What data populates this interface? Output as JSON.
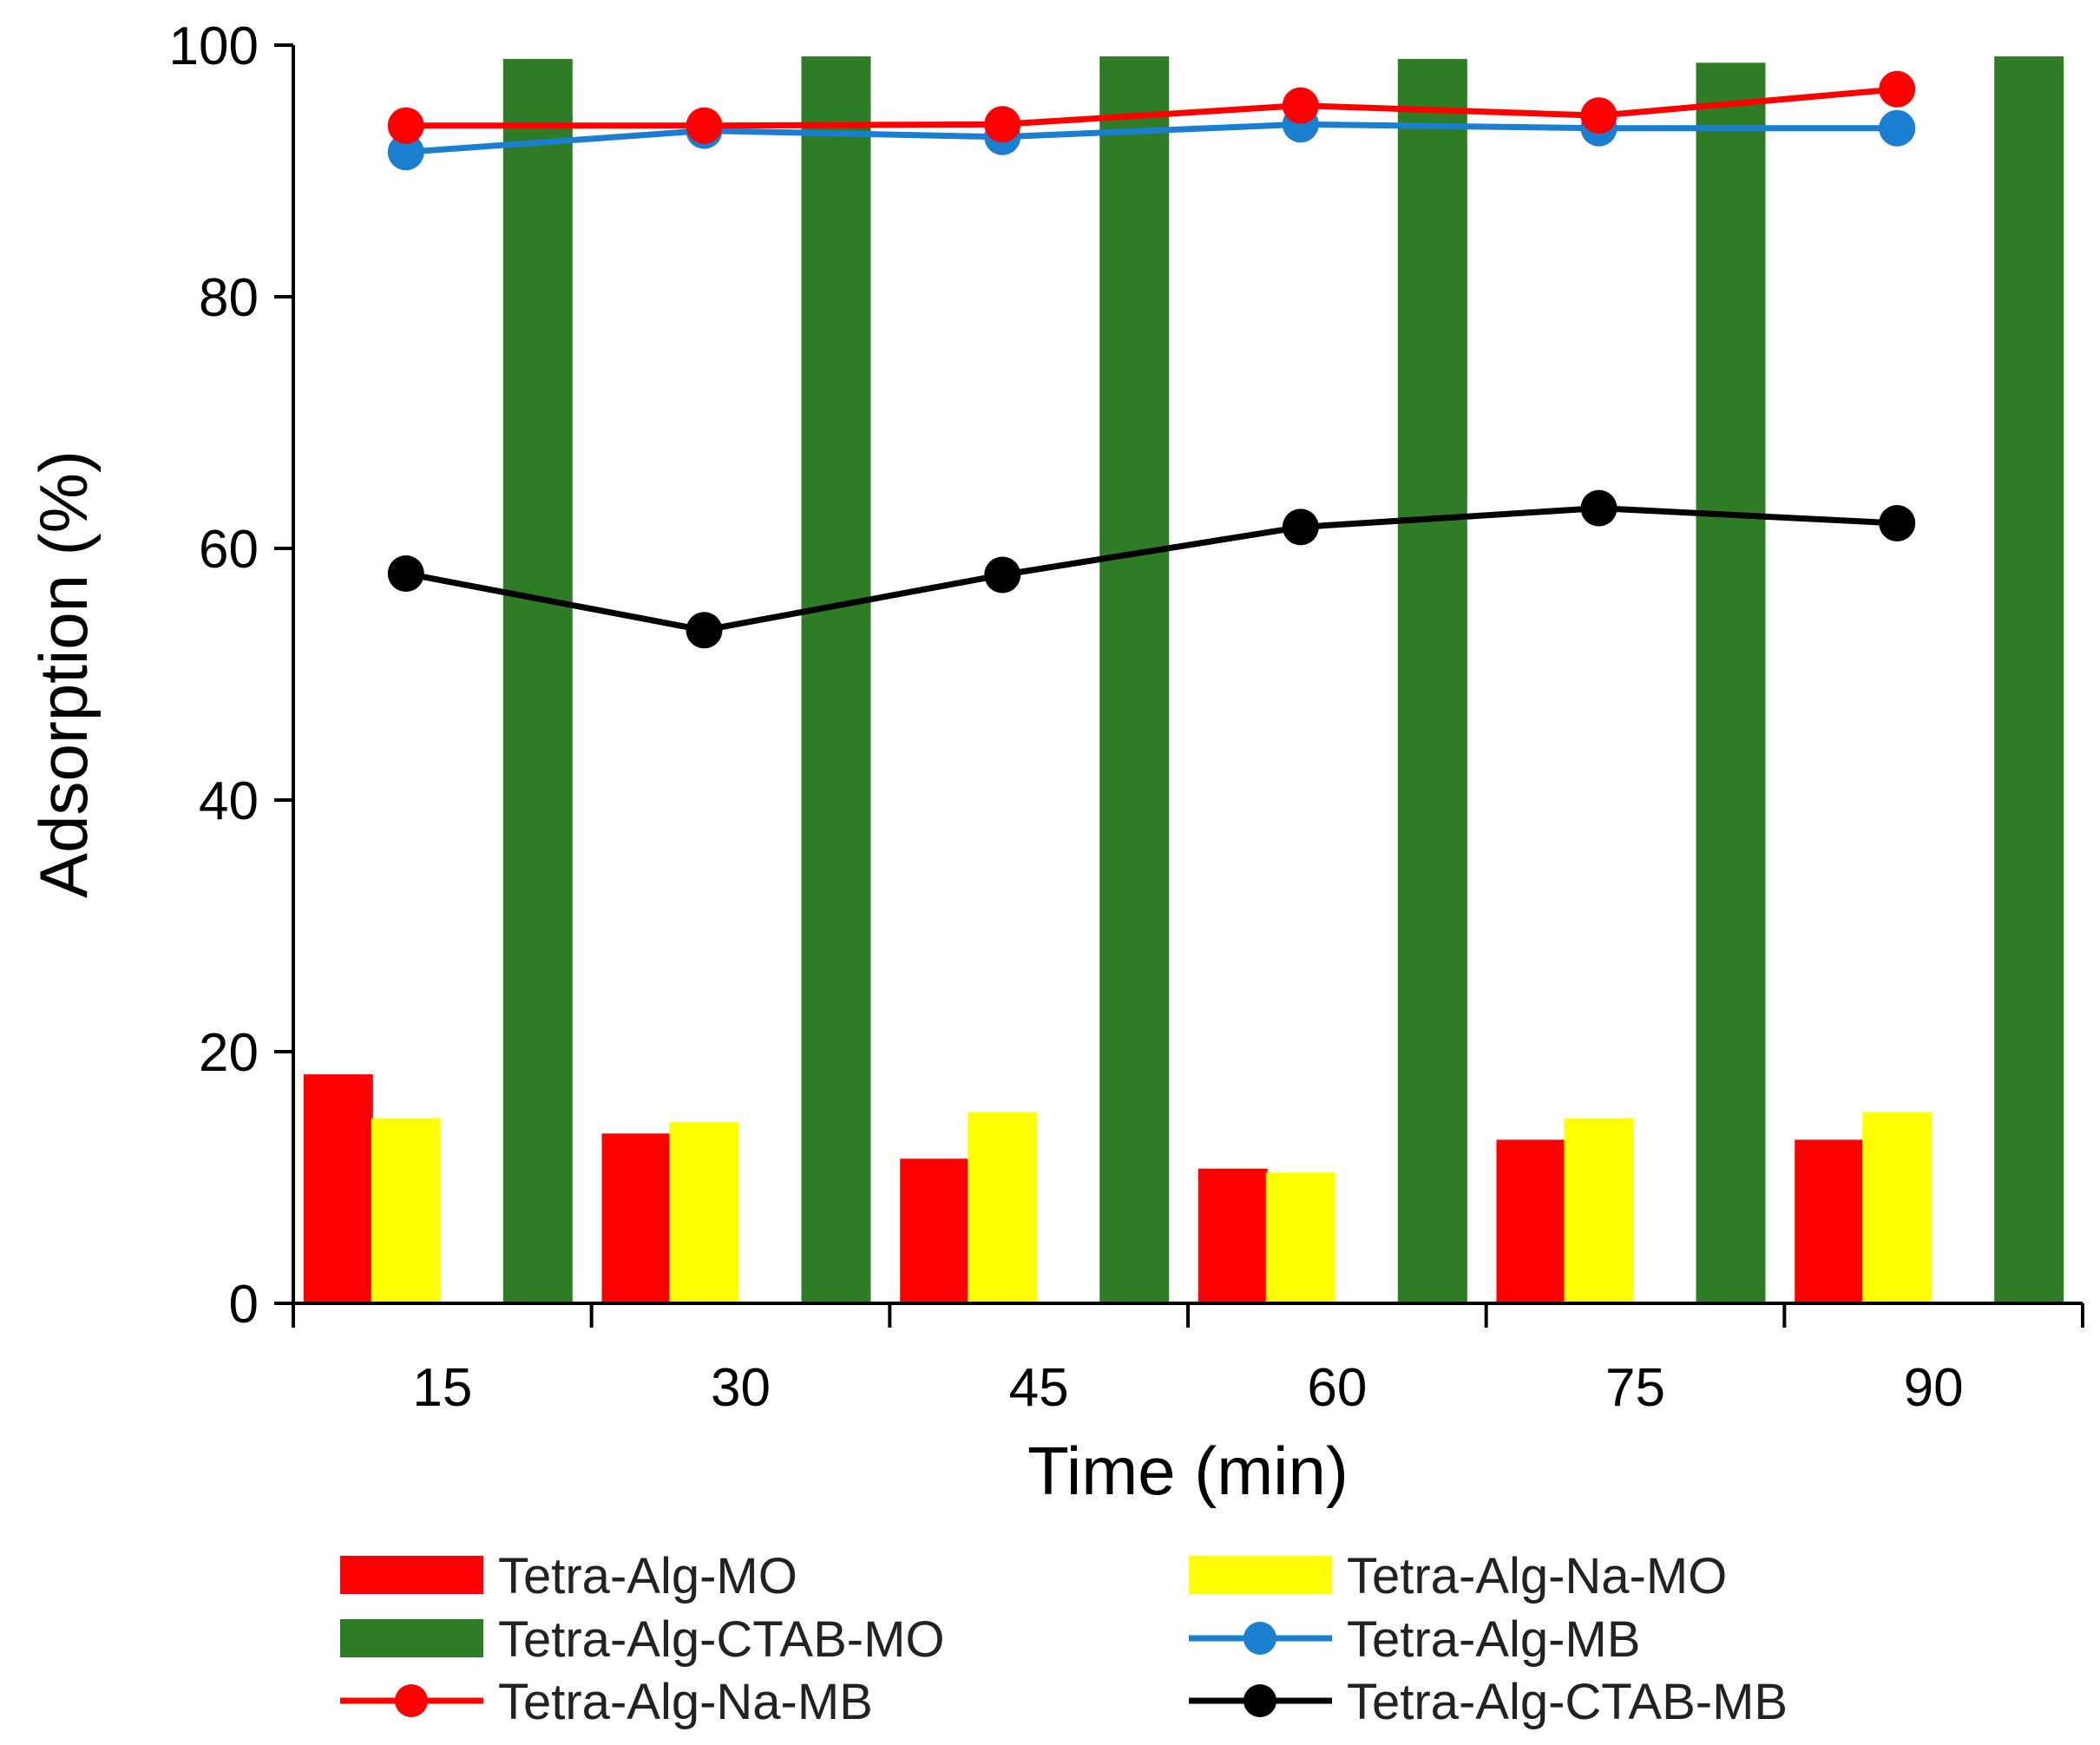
{
  "chart_data": {
    "type": "bar+line",
    "title": "",
    "xlabel": "Time (min)",
    "ylabel": "Adsorption (%)",
    "ylim": [
      0,
      100
    ],
    "yticks": [
      0,
      20,
      40,
      60,
      80,
      100
    ],
    "grid": false,
    "categories": [
      "15",
      "30",
      "45",
      "60",
      "75",
      "90"
    ],
    "bar_series": [
      {
        "name": "Tetra-Alg-MO",
        "color": "#ff0000",
        "values": [
          18.2,
          13.5,
          11.5,
          10.7,
          13.0,
          13.0
        ]
      },
      {
        "name": "Tetra-Alg-Na-MO",
        "color": "#ffff00",
        "values": [
          14.7,
          14.4,
          15.2,
          10.4,
          14.7,
          15.2
        ]
      },
      {
        "name": "Tetra-Alg-CTAB-MO",
        "color": "#2e7d26",
        "values": [
          98.9,
          99.1,
          99.1,
          98.9,
          98.6,
          99.1
        ]
      }
    ],
    "line_series": [
      {
        "name": "Tetra-Alg-MB",
        "color": "#1a7fd0",
        "values": [
          91.5,
          93.2,
          92.7,
          93.7,
          93.4,
          93.4
        ]
      },
      {
        "name": "Tetra-Alg-Na-MB",
        "color": "#ff0000",
        "values": [
          93.6,
          93.6,
          93.7,
          95.2,
          94.4,
          96.5
        ]
      },
      {
        "name": "Tetra-Alg-CTAB-MB",
        "color": "#000000",
        "values": [
          58.0,
          53.5,
          57.9,
          61.7,
          63.2,
          62.0
        ]
      }
    ],
    "legend_position": "bottom"
  }
}
